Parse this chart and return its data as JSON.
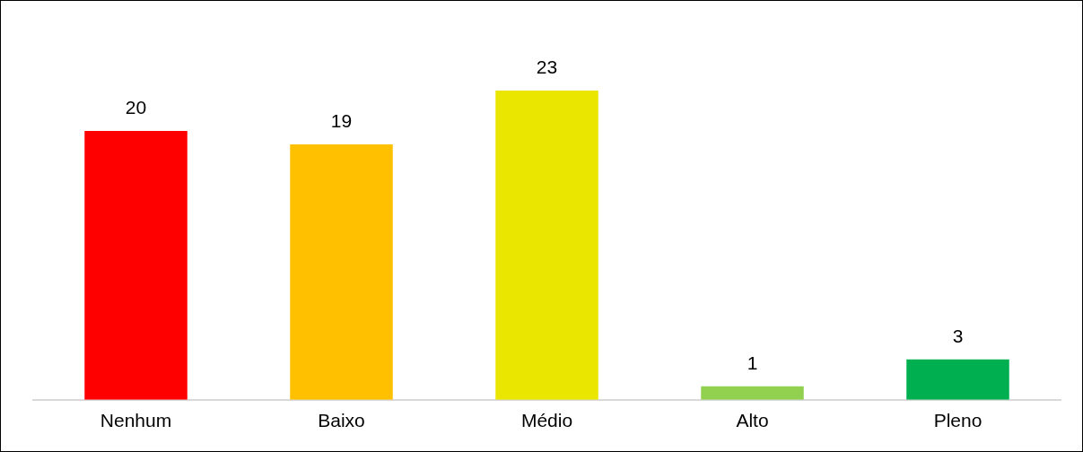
{
  "chart_data": {
    "type": "bar",
    "categories": [
      "Nenhum",
      "Baixo",
      "Médio",
      "Alto",
      "Pleno"
    ],
    "values": [
      20,
      19,
      23,
      1,
      3
    ],
    "colors": [
      "#ff0000",
      "#ffc000",
      "#eae600",
      "#92d050",
      "#00b050"
    ],
    "data_labels": true,
    "grid": false,
    "legend": false
  }
}
